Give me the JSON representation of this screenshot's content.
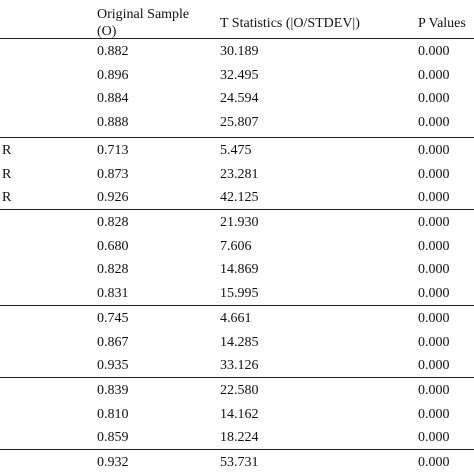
{
  "columns": [
    "",
    "Original Sample (O)",
    "T Statistics (|O/STDEV|)",
    "P Values"
  ],
  "groups": [
    {
      "rows": [
        [
          "",
          "0.882",
          "30.189",
          "0.000"
        ],
        [
          "",
          "0.896",
          "32.495",
          "0.000"
        ],
        [
          "",
          "0.884",
          "24.594",
          "0.000"
        ],
        [
          "",
          "0.888",
          "25.807",
          "0.000"
        ]
      ]
    },
    {
      "rows": [
        [
          "R",
          "0.713",
          "5.475",
          "0.000"
        ],
        [
          "R",
          "0.873",
          "23.281",
          "0.000"
        ],
        [
          "R",
          "0.926",
          "42.125",
          "0.000"
        ]
      ]
    },
    {
      "rows": [
        [
          "",
          "0.828",
          "21.930",
          "0.000"
        ],
        [
          "",
          "0.680",
          "7.606",
          "0.000"
        ],
        [
          "",
          "0.828",
          "14.869",
          "0.000"
        ],
        [
          "",
          "0.831",
          "15.995",
          "0.000"
        ]
      ]
    },
    {
      "rows": [
        [
          "",
          "0.745",
          "4.661",
          "0.000"
        ],
        [
          "",
          "0.867",
          "14.285",
          "0.000"
        ],
        [
          "",
          "0.935",
          "33.126",
          "0.000"
        ]
      ]
    },
    {
      "rows": [
        [
          "",
          "0.839",
          "22.580",
          "0.000"
        ],
        [
          "",
          "0.810",
          "14.162",
          "0.000"
        ],
        [
          "",
          "0.859",
          "18.224",
          "0.000"
        ]
      ]
    },
    {
      "rows": [
        [
          "",
          "0.932",
          "53.731",
          "0.000"
        ]
      ]
    }
  ]
}
